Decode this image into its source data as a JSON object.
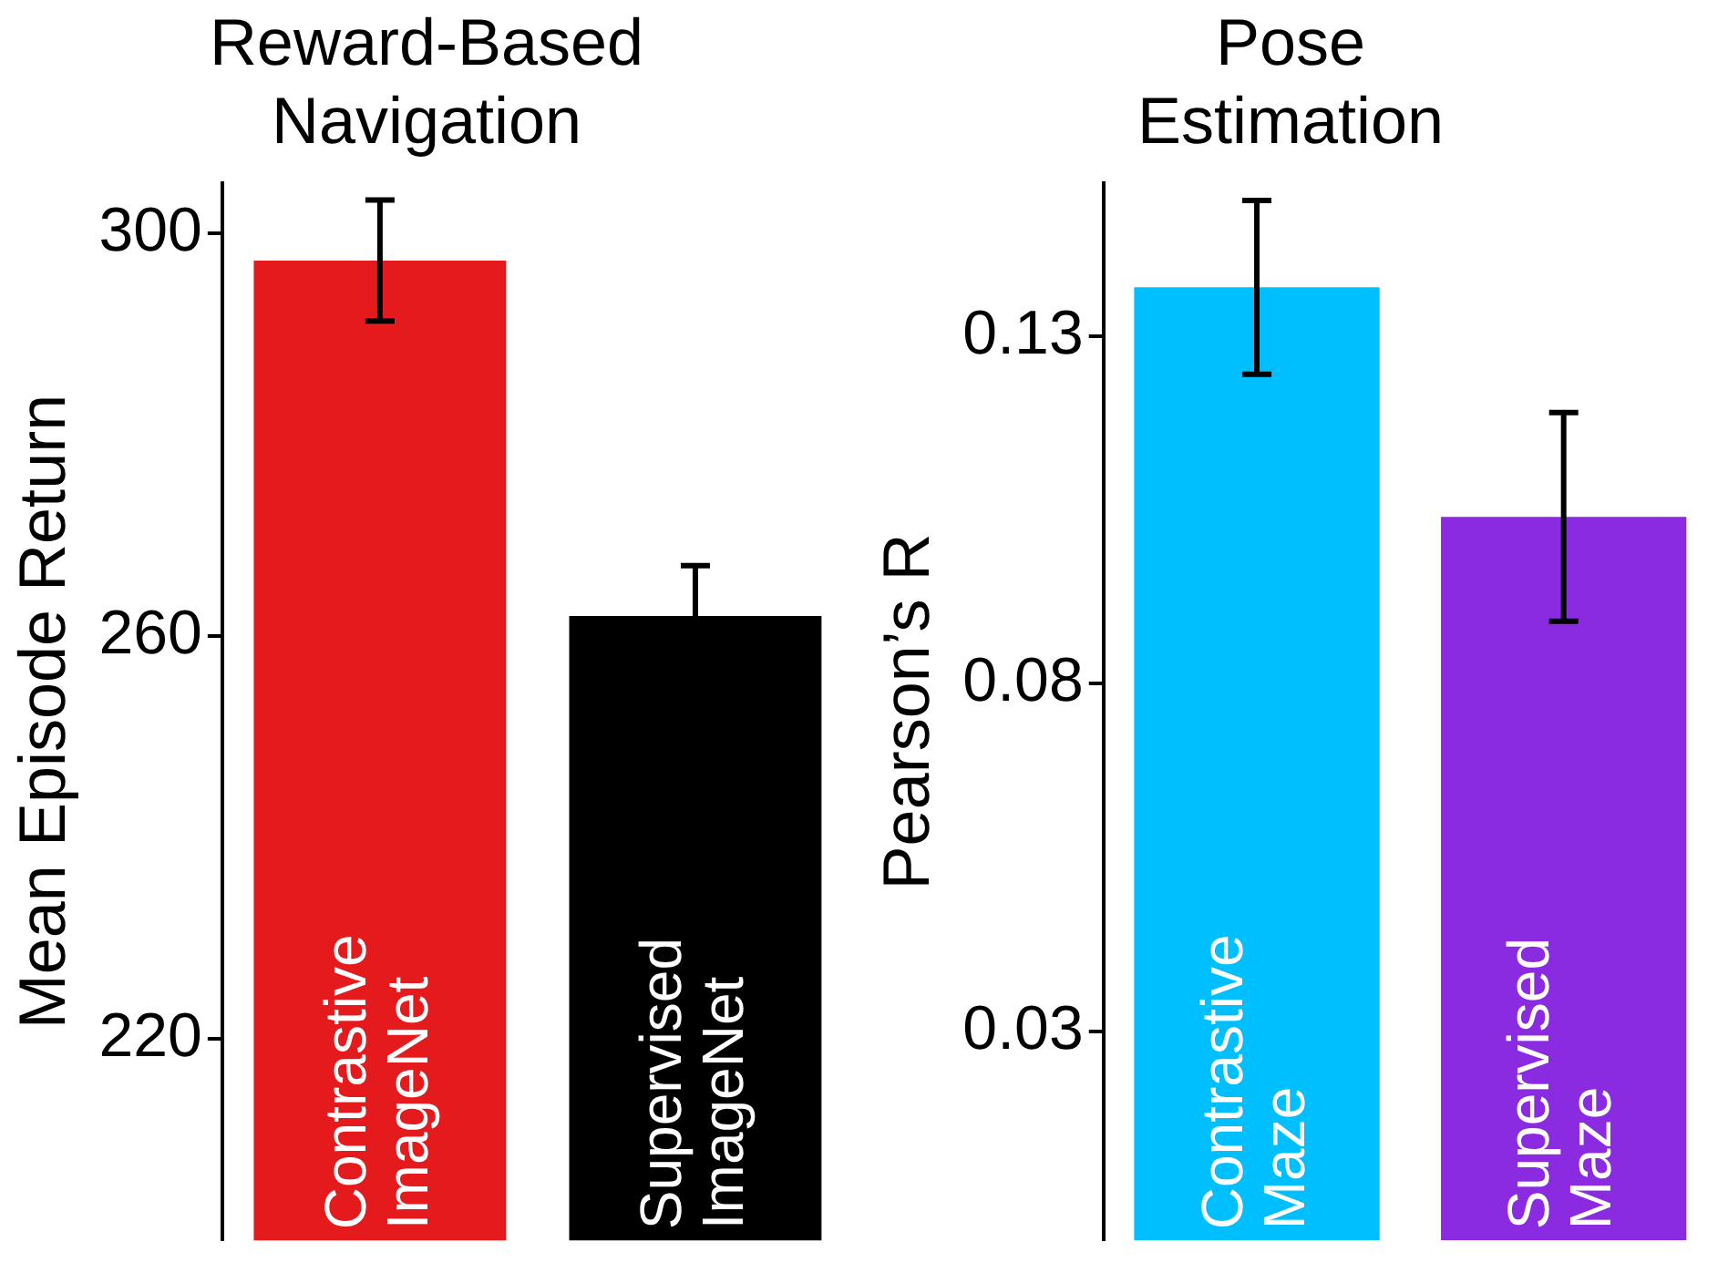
{
  "chart_data": [
    {
      "type": "bar",
      "title": "Reward-Based Navigation",
      "ylabel": "Mean Episode Return",
      "categories": [
        "Contrastive ImageNet",
        "Supervised ImageNet"
      ],
      "values": [
        297.3,
        262
      ],
      "errors": [
        6,
        5
      ],
      "colors": [
        "#e41a1c",
        "#000000"
      ],
      "ylim": [
        200,
        305
      ],
      "yticks": [
        220,
        260,
        300
      ],
      "grid": false,
      "legend": false,
      "tick_labels": "y"
    },
    {
      "type": "bar",
      "title": "Pose Estimation",
      "ylabel": "Pearson’s R",
      "categories": [
        "Contrastive Maze",
        "Supervised Maze"
      ],
      "values": [
        0.137,
        0.104
      ],
      "errors": [
        0.0125,
        0.015
      ],
      "colors": [
        "#00bfff",
        "#8a2be2"
      ],
      "ylim": [
        0,
        0.152
      ],
      "yticks": [
        0.03,
        0.08,
        0.13
      ],
      "grid": false,
      "legend": false,
      "tick_labels": "y"
    }
  ]
}
